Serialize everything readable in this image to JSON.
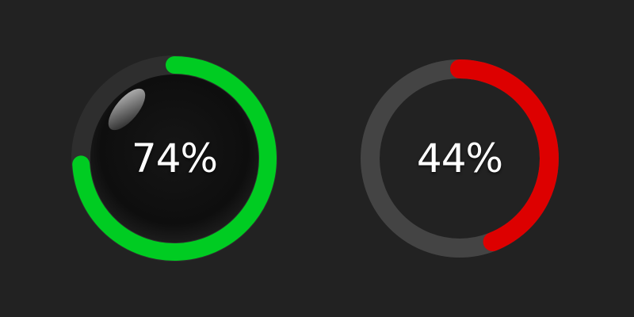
{
  "gauges": [
    {
      "label": "74%",
      "value": 0.74,
      "color": "#00cc22",
      "track_color": "#2e2e2e",
      "style": "glossy-dark"
    },
    {
      "label": "44%",
      "value": 0.44,
      "color": "#dd0000",
      "track_color": "#444444",
      "style": "flat"
    }
  ],
  "background_color": "#222222"
}
